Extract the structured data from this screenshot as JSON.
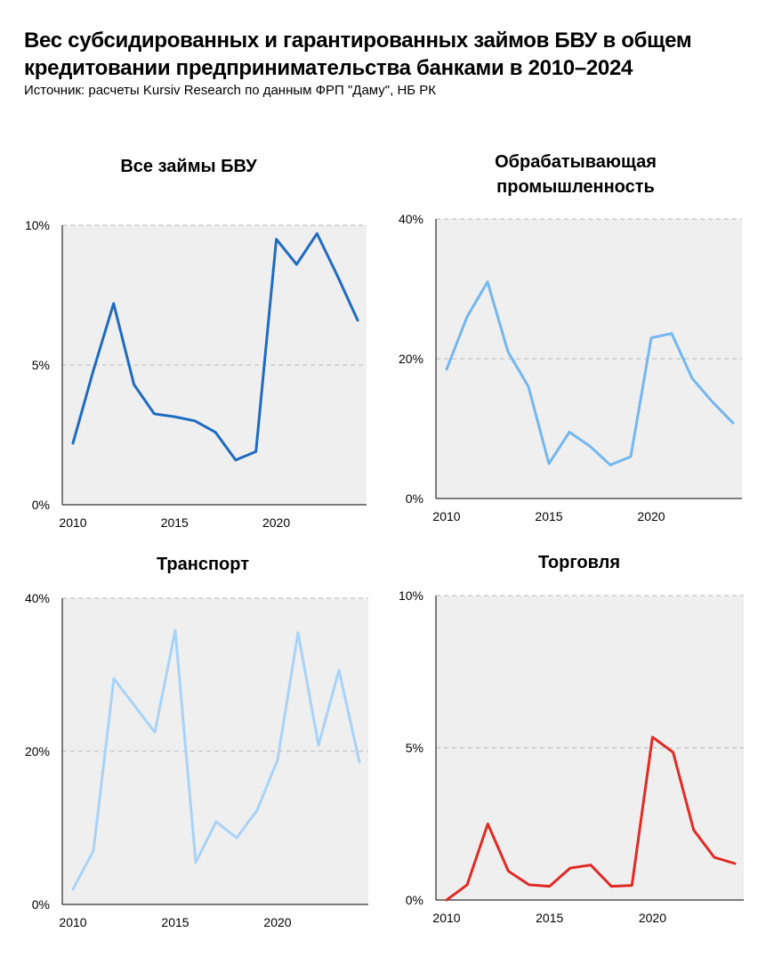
{
  "header": {
    "title": "Вес субсидированных и гарантированных займов БВУ в общем кредитовании предпринимательства банками в 2010–2024",
    "source": "Источник: расчеты Kursiv Research по данным ФРП \"Даму\", НБ РК"
  },
  "chart_data": [
    {
      "type": "line",
      "title": [
        "Все займы БВУ"
      ],
      "color": "#1f6bbf",
      "x": [
        2010,
        2011,
        2012,
        2013,
        2014,
        2015,
        2016,
        2017,
        2018,
        2019,
        2020,
        2021,
        2022,
        2023,
        2024
      ],
      "values": [
        2.2,
        4.8,
        7.2,
        4.3,
        3.25,
        3.15,
        3.0,
        2.6,
        1.6,
        1.9,
        9.5,
        8.6,
        9.7,
        8.2,
        6.6
      ],
      "ylim": [
        0,
        10
      ],
      "yticks": [
        0,
        5,
        10
      ],
      "ytick_labels": [
        "0%",
        "5%",
        "10%"
      ],
      "xticks": [
        2010,
        2015,
        2020
      ],
      "xtick_labels": [
        "2010",
        "2015",
        "2020"
      ]
    },
    {
      "type": "line",
      "title": [
        "Обрабатывающая",
        "промышленность"
      ],
      "color": "#74b7ee",
      "x": [
        2010,
        2011,
        2012,
        2013,
        2014,
        2015,
        2016,
        2017,
        2018,
        2019,
        2020,
        2021,
        2022,
        2023,
        2024
      ],
      "values": [
        18.5,
        26.0,
        31.0,
        21.0,
        16.0,
        5.0,
        9.5,
        7.5,
        4.8,
        6.0,
        23.0,
        23.6,
        17.2,
        13.8,
        10.8
      ],
      "ylim": [
        0,
        40
      ],
      "yticks": [
        0,
        20,
        40
      ],
      "ytick_labels": [
        "0%",
        "20%",
        "40%"
      ],
      "xticks": [
        2010,
        2015,
        2020
      ],
      "xtick_labels": [
        "2010",
        "2015",
        "2020"
      ]
    },
    {
      "type": "line",
      "title": [
        "Транспорт"
      ],
      "color": "#a8d3f7",
      "x": [
        2010,
        2011,
        2012,
        2013,
        2014,
        2015,
        2016,
        2017,
        2018,
        2019,
        2020,
        2021,
        2022,
        2023,
        2024
      ],
      "values": [
        2.0,
        7.0,
        29.5,
        26.0,
        22.5,
        35.8,
        5.5,
        10.8,
        8.7,
        12.3,
        18.9,
        35.5,
        20.8,
        30.6,
        18.6
      ],
      "ylim": [
        0,
        40
      ],
      "yticks": [
        0,
        20,
        40
      ],
      "ytick_labels": [
        "0%",
        "20%",
        "40%"
      ],
      "xticks": [
        2010,
        2015,
        2020
      ],
      "xtick_labels": [
        "2010",
        "2015",
        "2020"
      ]
    },
    {
      "type": "line",
      "title": [
        "Торговля"
      ],
      "color": "#e02b25",
      "x": [
        2010,
        2011,
        2012,
        2013,
        2014,
        2015,
        2016,
        2017,
        2018,
        2019,
        2020,
        2021,
        2022,
        2023,
        2024
      ],
      "values": [
        0.0,
        0.5,
        2.5,
        0.95,
        0.5,
        0.45,
        1.05,
        1.15,
        0.45,
        0.48,
        5.35,
        4.85,
        2.3,
        1.4,
        1.2
      ],
      "ylim": [
        0,
        10
      ],
      "yticks": [
        0,
        5,
        10
      ],
      "ytick_labels": [
        "0%",
        "5%",
        "10%"
      ],
      "xticks": [
        2010,
        2015,
        2020
      ],
      "xtick_labels": [
        "2010",
        "2015",
        "2020"
      ]
    }
  ]
}
